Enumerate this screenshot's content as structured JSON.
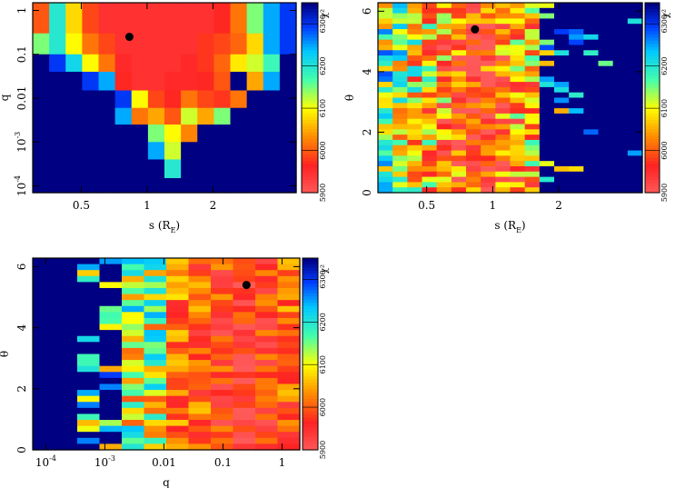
{
  "chart_data": [
    {
      "id": "p1",
      "type": "heatmap",
      "xlabel": "s (R_E)",
      "ylabel": "q",
      "xscale": "log",
      "yscale": "log",
      "xlim": [
        0.3,
        4.8
      ],
      "ylim": [
        7e-05,
        1.5
      ],
      "xticks": [
        {
          "value": 0.5,
          "label": "0.5"
        },
        {
          "value": 1,
          "label": "1"
        },
        {
          "value": 2,
          "label": "2"
        }
      ],
      "yticks": [
        {
          "value": 1,
          "label": "1"
        },
        {
          "value": 0.1,
          "label": "0.1"
        },
        {
          "value": 0.01,
          "label": "0.01"
        },
        {
          "value": 0.001,
          "label": "10^-3"
        },
        {
          "value": 0.0001,
          "label": "10^-4"
        }
      ],
      "nx": 16,
      "rows": [
        {
          "y0": 0.3,
          "y1": 1.5,
          "v": [
            6000,
            6200,
            6080,
            5990,
            5950,
            5950,
            5950,
            5950,
            5950,
            5950,
            5950,
            5970,
            6020,
            6150,
            6250,
            6300
          ]
        },
        {
          "y0": 0.1,
          "y1": 0.3,
          "v": [
            6150,
            6200,
            6100,
            6020,
            5990,
            5950,
            5950,
            5950,
            5950,
            5950,
            5980,
            5990,
            6010,
            6080,
            6250,
            6300
          ]
        },
        {
          "y0": 0.04,
          "y1": 0.1,
          "v": [
            6400,
            6300,
            6220,
            6100,
            6020,
            5960,
            5950,
            5950,
            5950,
            5960,
            5980,
            6010,
            6090,
            6120,
            6180,
            6400
          ]
        },
        {
          "y0": 0.015,
          "y1": 0.04,
          "v": [
            6400,
            6400,
            6400,
            6300,
            6250,
            5970,
            5950,
            5950,
            5960,
            5960,
            5970,
            6000,
            6400,
            6050,
            6250,
            6400
          ]
        },
        {
          "y0": 0.006,
          "y1": 0.015,
          "v": [
            6400,
            6400,
            6400,
            6400,
            6400,
            6300,
            6100,
            5990,
            5970,
            6020,
            5990,
            5980,
            6020,
            6400,
            6400,
            6400
          ]
        },
        {
          "y0": 0.0025,
          "y1": 0.006,
          "v": [
            6400,
            6400,
            6400,
            6400,
            6400,
            6250,
            6020,
            6050,
            6000,
            6120,
            6050,
            6150,
            6400,
            6400,
            6400,
            6400
          ]
        },
        {
          "y0": 0.001,
          "y1": 0.0025,
          "v": [
            6400,
            6400,
            6400,
            6400,
            6400,
            6400,
            6400,
            6150,
            6100,
            6030,
            6400,
            6400,
            6400,
            6400,
            6400,
            6400
          ]
        },
        {
          "y0": 0.0004,
          "y1": 0.001,
          "v": [
            6400,
            6400,
            6400,
            6400,
            6400,
            6400,
            6400,
            6250,
            6120,
            6400,
            6400,
            6400,
            6400,
            6400,
            6400,
            6400
          ]
        },
        {
          "y0": 0.00015,
          "y1": 0.0004,
          "v": [
            6400,
            6400,
            6400,
            6400,
            6400,
            6400,
            6400,
            6400,
            6200,
            6400,
            6400,
            6400,
            6400,
            6400,
            6400,
            6400
          ]
        },
        {
          "y0": 7e-05,
          "y1": 0.00015,
          "v": [
            6400,
            6400,
            6400,
            6400,
            6400,
            6400,
            6400,
            6400,
            6400,
            6400,
            6400,
            6400,
            6400,
            6400,
            6400,
            6400
          ]
        }
      ],
      "best_fit": {
        "x": 0.83,
        "y": 0.25
      },
      "colorbar": {
        "label": "χ²",
        "ticks": [
          5900,
          6000,
          6100,
          6200,
          6300
        ],
        "range": [
          5900,
          6350
        ]
      }
    },
    {
      "id": "p2",
      "type": "heatmap",
      "xlabel": "s (R_E)",
      "ylabel": "θ",
      "xscale": "log",
      "yscale": "linear",
      "xlim": [
        0.3,
        4.8
      ],
      "ylim": [
        0,
        6.28
      ],
      "xticks": [
        {
          "value": 0.5,
          "label": "0.5"
        },
        {
          "value": 1,
          "label": "1"
        },
        {
          "value": 2,
          "label": "2"
        }
      ],
      "yticks": [
        {
          "value": 0,
          "label": "0"
        },
        {
          "value": 2,
          "label": "2"
        },
        {
          "value": 4,
          "label": "4"
        },
        {
          "value": 6,
          "label": "6"
        }
      ],
      "best_fit": {
        "x": 0.83,
        "y": 5.4
      },
      "colorbar": {
        "label": "χ²",
        "ticks": [
          5900,
          6000,
          6100,
          6200,
          6300
        ],
        "range": [
          5900,
          6350
        ]
      }
    },
    {
      "id": "p3",
      "type": "heatmap",
      "xlabel": "q",
      "ylabel": "θ",
      "xscale": "log",
      "yscale": "linear",
      "xlim": [
        6e-05,
        2.0
      ],
      "ylim": [
        0,
        6.28
      ],
      "xticks": [
        {
          "value": 0.0001,
          "label": "10^-4"
        },
        {
          "value": 0.001,
          "label": "10^-3"
        },
        {
          "value": 0.01,
          "label": "0.01"
        },
        {
          "value": 0.1,
          "label": "0.1"
        },
        {
          "value": 1,
          "label": "1"
        }
      ],
      "yticks": [
        {
          "value": 0,
          "label": "0"
        },
        {
          "value": 2,
          "label": "2"
        },
        {
          "value": 4,
          "label": "4"
        },
        {
          "value": 6,
          "label": "6"
        }
      ],
      "best_fit": {
        "x": 0.25,
        "y": 5.4
      },
      "colorbar": {
        "label": "χ²",
        "ticks": [
          5900,
          6000,
          6100,
          6200,
          6300
        ],
        "range": [
          5900,
          6350
        ]
      }
    }
  ]
}
